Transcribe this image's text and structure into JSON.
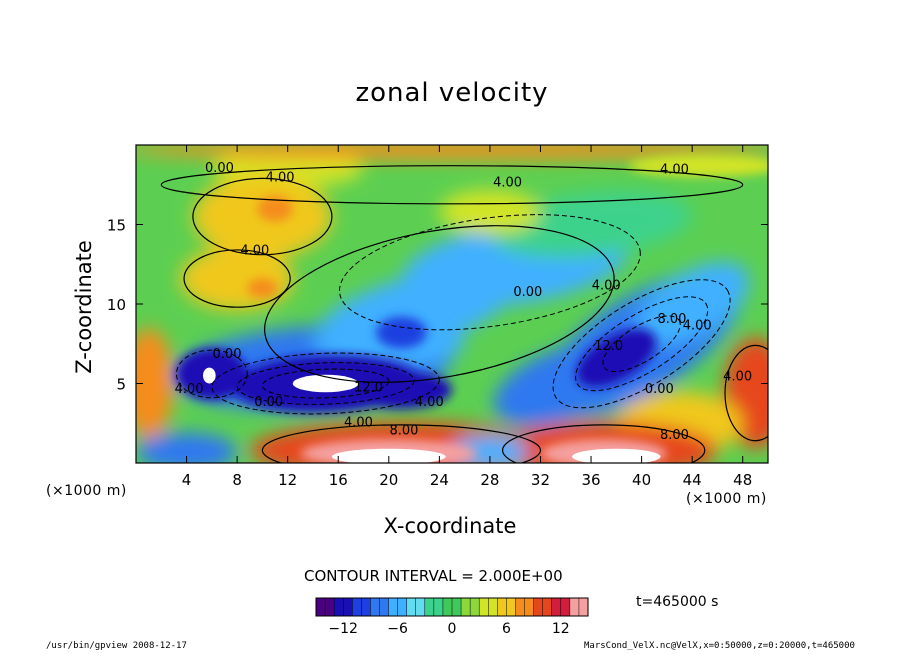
{
  "title": "zonal velocity",
  "colors": {
    "scale": [
      "#4a0080",
      "#1a0fb4",
      "#1e40e0",
      "#2f78f0",
      "#3fb0ff",
      "#64dcf0",
      "#3cd28c",
      "#40c85a",
      "#8cd83c",
      "#d2e428",
      "#f0c81e",
      "#f58c1e",
      "#e6461e",
      "#d21e3c",
      "#f5a0a0"
    ]
  },
  "chart_data": {
    "type": "heatmap",
    "title": "zonal velocity",
    "xlabel": "X-coordinate",
    "ylabel": "Z-coordinate",
    "x_unit": "(×1000 m)",
    "xlim": [
      0,
      50
    ],
    "ylim": [
      0,
      20
    ],
    "x_ticks": [
      "4",
      "8",
      "12",
      "16",
      "20",
      "24",
      "28",
      "32",
      "36",
      "40",
      "44",
      "48"
    ],
    "y_ticks": [
      "5",
      "10",
      "15"
    ],
    "contour_interval_text": "CONTOUR INTERVAL = 2.000E+00",
    "time_text": "t=465000 s",
    "colorbar_ticks": [
      "−12",
      "−6",
      "0",
      "6",
      "12"
    ],
    "colorbar_range": [
      -15,
      15
    ],
    "contour_labels": [
      {
        "text": "0.00",
        "x": 6.6,
        "z": 18.3
      },
      {
        "text": "4.00",
        "x": 11.4,
        "z": 17.7
      },
      {
        "text": "4.00",
        "x": 29.4,
        "z": 17.4
      },
      {
        "text": "4.00",
        "x": 42.6,
        "z": 18.2
      },
      {
        "text": "4.00",
        "x": 9.4,
        "z": 13.1
      },
      {
        "text": "0.00",
        "x": 31.0,
        "z": 10.5
      },
      {
        "text": "4.00",
        "x": 37.2,
        "z": 10.9
      },
      {
        "text": "8.00",
        "x": 42.4,
        "z": 8.8
      },
      {
        "text": "4.00",
        "x": 44.4,
        "z": 8.4
      },
      {
        "text": "4.00",
        "x": 47.6,
        "z": 5.2
      },
      {
        "text": "0.00",
        "x": 41.4,
        "z": 4.4
      },
      {
        "text": "8.00",
        "x": 42.6,
        "z": 1.5
      },
      {
        "text": "12.0",
        "x": 18.4,
        "z": 4.5
      },
      {
        "text": "4.00",
        "x": 23.2,
        "z": 3.6
      },
      {
        "text": "0.00",
        "x": 10.5,
        "z": 3.6
      },
      {
        "text": "4.00",
        "x": 17.6,
        "z": 2.3
      },
      {
        "text": "8.00",
        "x": 21.2,
        "z": 1.8
      },
      {
        "text": "0.00",
        "x": 7.2,
        "z": 6.6
      },
      {
        "text": "4.00",
        "x": 4.2,
        "z": 4.4
      },
      {
        "text": "12.0",
        "x": 37.4,
        "z": 7.1
      }
    ],
    "features": [
      {
        "desc": "strong negative jet",
        "x": 18,
        "z": 5.0,
        "value": -13
      },
      {
        "desc": "negative core",
        "x": 6,
        "z": 5.6,
        "value": -13
      },
      {
        "desc": "negative band",
        "x": 40,
        "z": 8.0,
        "value": -9
      },
      {
        "desc": "positive bottom jet",
        "x": 20,
        "z": 1.0,
        "value": 12
      },
      {
        "desc": "positive bottom jet",
        "x": 37,
        "z": 1.0,
        "value": 12
      },
      {
        "desc": "positive patch",
        "x": 10,
        "z": 15.5,
        "value": 5
      },
      {
        "desc": "positive patch",
        "x": 8,
        "z": 11.5,
        "value": 5
      },
      {
        "desc": "positive patch",
        "x": 49.5,
        "z": 4.5,
        "value": 9
      }
    ]
  },
  "footer": {
    "left": "/usr/bin/gpview  2008-12-17",
    "right": "MarsCond_VelX.nc@VelX,x=0:50000,z=0:20000,t=465000"
  }
}
